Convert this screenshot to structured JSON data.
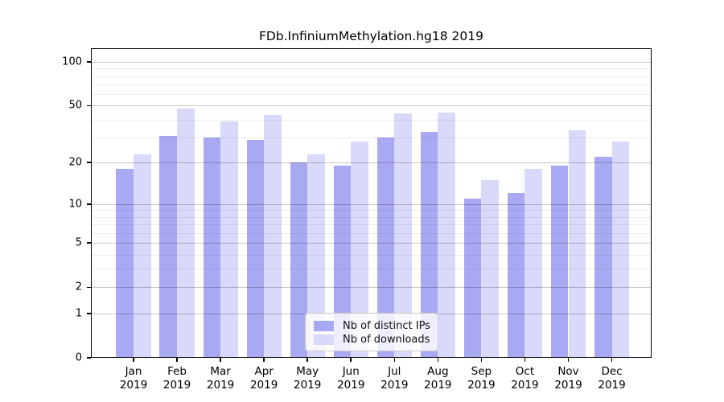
{
  "title": "FDb.InfiniumMethylation.hg18 2019",
  "chart_data": {
    "type": "bar",
    "title": "FDb.InfiniumMethylation.hg18 2019",
    "categories": [
      "Jan 2019",
      "Feb 2019",
      "Mar 2019",
      "Apr 2019",
      "May 2019",
      "Jun 2019",
      "Jul 2019",
      "Aug 2019",
      "Sep 2019",
      "Oct 2019",
      "Nov 2019",
      "Dec 2019"
    ],
    "series": [
      {
        "name": "Nb of distinct IPs",
        "color": "#a9a9f3",
        "values": [
          18,
          31,
          30,
          29,
          20,
          19,
          30,
          33,
          11,
          12,
          19,
          22
        ]
      },
      {
        "name": "Nb of downloads",
        "color": "#d9d9f9",
        "values": [
          23,
          48,
          39,
          43,
          23,
          28,
          44,
          45,
          15,
          18,
          34,
          28
        ]
      }
    ],
    "xlabel": "",
    "ylabel": "",
    "yscale": "log1p",
    "yticks": [
      0,
      1,
      2,
      5,
      10,
      20,
      50,
      100
    ],
    "minor_gridlines": [
      3,
      4,
      6,
      7,
      8,
      9,
      30,
      40,
      60,
      70,
      80,
      90
    ],
    "ylim": [
      0,
      124
    ],
    "grid": true,
    "legend_position": "bottom-center"
  },
  "colors": {
    "distinct_ips": "#a9a9f3",
    "downloads": "#d9d9f9",
    "frame": "#000000",
    "major_grid": "#c9c9c9",
    "minor_grid": "#f0f0f0"
  }
}
